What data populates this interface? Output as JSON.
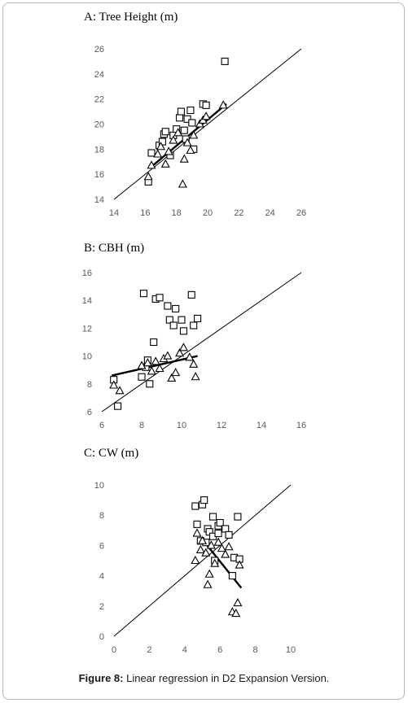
{
  "caption": {
    "label": "Figure 8:",
    "text": " Linear regression in D2 Expansion Version."
  },
  "chart_data": [
    {
      "type": "scatter",
      "title": "A: Tree Height (m)",
      "xlim": [
        14,
        26
      ],
      "ylim": [
        14,
        26
      ],
      "xticks": [
        14,
        16,
        18,
        20,
        22,
        24,
        26
      ],
      "yticks": [
        14,
        16,
        18,
        20,
        22,
        24,
        26
      ],
      "series": [
        {
          "marker": "square",
          "points": [
            [
              16.2,
              15.4
            ],
            [
              16.4,
              17.7
            ],
            [
              16.9,
              18.3
            ],
            [
              17.1,
              18.6
            ],
            [
              17.2,
              19.2
            ],
            [
              17.3,
              19.4
            ],
            [
              17.6,
              17.5
            ],
            [
              17.8,
              19.1
            ],
            [
              18.0,
              19.6
            ],
            [
              18.2,
              20.5
            ],
            [
              18.3,
              21.0
            ],
            [
              18.5,
              19.5
            ],
            [
              18.6,
              18.8
            ],
            [
              18.7,
              20.4
            ],
            [
              18.9,
              21.1
            ],
            [
              19.0,
              20.1
            ],
            [
              19.1,
              18.0
            ],
            [
              19.7,
              21.6
            ],
            [
              19.9,
              21.5
            ],
            [
              21.1,
              25.0
            ]
          ]
        },
        {
          "marker": "triangle",
          "points": [
            [
              16.2,
              15.8
            ],
            [
              16.4,
              16.7
            ],
            [
              16.8,
              17.6
            ],
            [
              17.0,
              18.2
            ],
            [
              17.3,
              16.8
            ],
            [
              17.5,
              17.8
            ],
            [
              17.8,
              18.7
            ],
            [
              18.1,
              19.3
            ],
            [
              18.4,
              15.2
            ],
            [
              18.5,
              17.2
            ],
            [
              18.7,
              18.5
            ],
            [
              18.9,
              17.9
            ],
            [
              19.1,
              19.1
            ],
            [
              19.5,
              20.0
            ],
            [
              19.7,
              20.3
            ],
            [
              19.9,
              20.6
            ],
            [
              21.0,
              21.5
            ]
          ]
        }
      ],
      "lines": [
        {
          "style": "thin",
          "from": [
            14,
            14
          ],
          "to": [
            26,
            26
          ]
        },
        {
          "style": "thick",
          "from": [
            16.3,
            16.5
          ],
          "to": [
            21.2,
            21.6
          ]
        }
      ]
    },
    {
      "type": "scatter",
      "title": "B: CBH (m)",
      "xlim": [
        6,
        16
      ],
      "ylim": [
        6,
        16
      ],
      "xticks": [
        6,
        8,
        10,
        12,
        14,
        16
      ],
      "yticks": [
        6,
        8,
        10,
        12,
        14,
        16
      ],
      "series": [
        {
          "marker": "square",
          "points": [
            [
              6.6,
              8.3
            ],
            [
              6.8,
              6.4
            ],
            [
              8.0,
              8.5
            ],
            [
              8.1,
              14.5
            ],
            [
              8.2,
              9.2
            ],
            [
              8.3,
              9.7
            ],
            [
              8.4,
              8.0
            ],
            [
              8.6,
              11.0
            ],
            [
              8.7,
              14.1
            ],
            [
              8.9,
              14.2
            ],
            [
              9.3,
              13.6
            ],
            [
              9.4,
              12.6
            ],
            [
              9.6,
              12.2
            ],
            [
              9.7,
              13.4
            ],
            [
              10.0,
              12.6
            ],
            [
              10.1,
              11.8
            ],
            [
              10.5,
              14.4
            ],
            [
              10.6,
              12.2
            ],
            [
              10.8,
              12.7
            ]
          ]
        },
        {
          "marker": "triangle",
          "points": [
            [
              6.6,
              7.9
            ],
            [
              6.9,
              7.5
            ],
            [
              8.0,
              9.3
            ],
            [
              8.3,
              9.5
            ],
            [
              8.5,
              8.9
            ],
            [
              8.7,
              9.6
            ],
            [
              8.9,
              9.1
            ],
            [
              9.1,
              9.8
            ],
            [
              9.3,
              10.0
            ],
            [
              9.5,
              8.4
            ],
            [
              9.7,
              8.8
            ],
            [
              9.9,
              10.2
            ],
            [
              10.1,
              10.6
            ],
            [
              10.4,
              9.9
            ],
            [
              10.6,
              9.4
            ],
            [
              10.7,
              8.5
            ]
          ]
        }
      ],
      "lines": [
        {
          "style": "thin",
          "from": [
            6,
            6
          ],
          "to": [
            16,
            16
          ]
        },
        {
          "style": "thick",
          "from": [
            6.5,
            8.6
          ],
          "to": [
            10.8,
            10.0
          ]
        }
      ]
    },
    {
      "type": "scatter",
      "title": "C: CW (m)",
      "xlim": [
        0,
        10
      ],
      "ylim": [
        0,
        10
      ],
      "xticks": [
        0,
        2,
        4,
        6,
        8,
        10
      ],
      "yticks": [
        0,
        2,
        4,
        6,
        8,
        10
      ],
      "series": [
        {
          "marker": "square",
          "points": [
            [
              4.6,
              8.6
            ],
            [
              4.7,
              7.4
            ],
            [
              4.9,
              6.3
            ],
            [
              5.0,
              8.7
            ],
            [
              5.1,
              9.0
            ],
            [
              5.2,
              6.2
            ],
            [
              5.3,
              7.1
            ],
            [
              5.4,
              6.9
            ],
            [
              5.6,
              7.9
            ],
            [
              5.6,
              6.6
            ],
            [
              5.7,
              5.0
            ],
            [
              5.9,
              7.3
            ],
            [
              5.9,
              6.8
            ],
            [
              6.0,
              7.5
            ],
            [
              6.3,
              7.1
            ],
            [
              6.5,
              6.7
            ],
            [
              6.7,
              4.0
            ],
            [
              6.8,
              5.2
            ],
            [
              7.0,
              7.9
            ],
            [
              7.1,
              5.1
            ]
          ]
        },
        {
          "marker": "triangle",
          "points": [
            [
              4.6,
              5.0
            ],
            [
              4.7,
              6.8
            ],
            [
              4.9,
              5.7
            ],
            [
              5.0,
              6.3
            ],
            [
              5.2,
              5.5
            ],
            [
              5.3,
              3.4
            ],
            [
              5.4,
              4.1
            ],
            [
              5.5,
              6.0
            ],
            [
              5.7,
              4.8
            ],
            [
              5.9,
              6.2
            ],
            [
              6.1,
              5.8
            ],
            [
              6.3,
              5.4
            ],
            [
              6.5,
              5.9
            ],
            [
              6.7,
              1.6
            ],
            [
              6.9,
              1.5
            ],
            [
              7.0,
              2.2
            ],
            [
              7.1,
              4.7
            ]
          ]
        }
      ],
      "lines": [
        {
          "style": "thin",
          "from": [
            0,
            0
          ],
          "to": [
            10,
            10
          ]
        },
        {
          "style": "thick",
          "from": [
            5.0,
            6.4
          ],
          "to": [
            7.2,
            3.2
          ]
        }
      ]
    }
  ]
}
